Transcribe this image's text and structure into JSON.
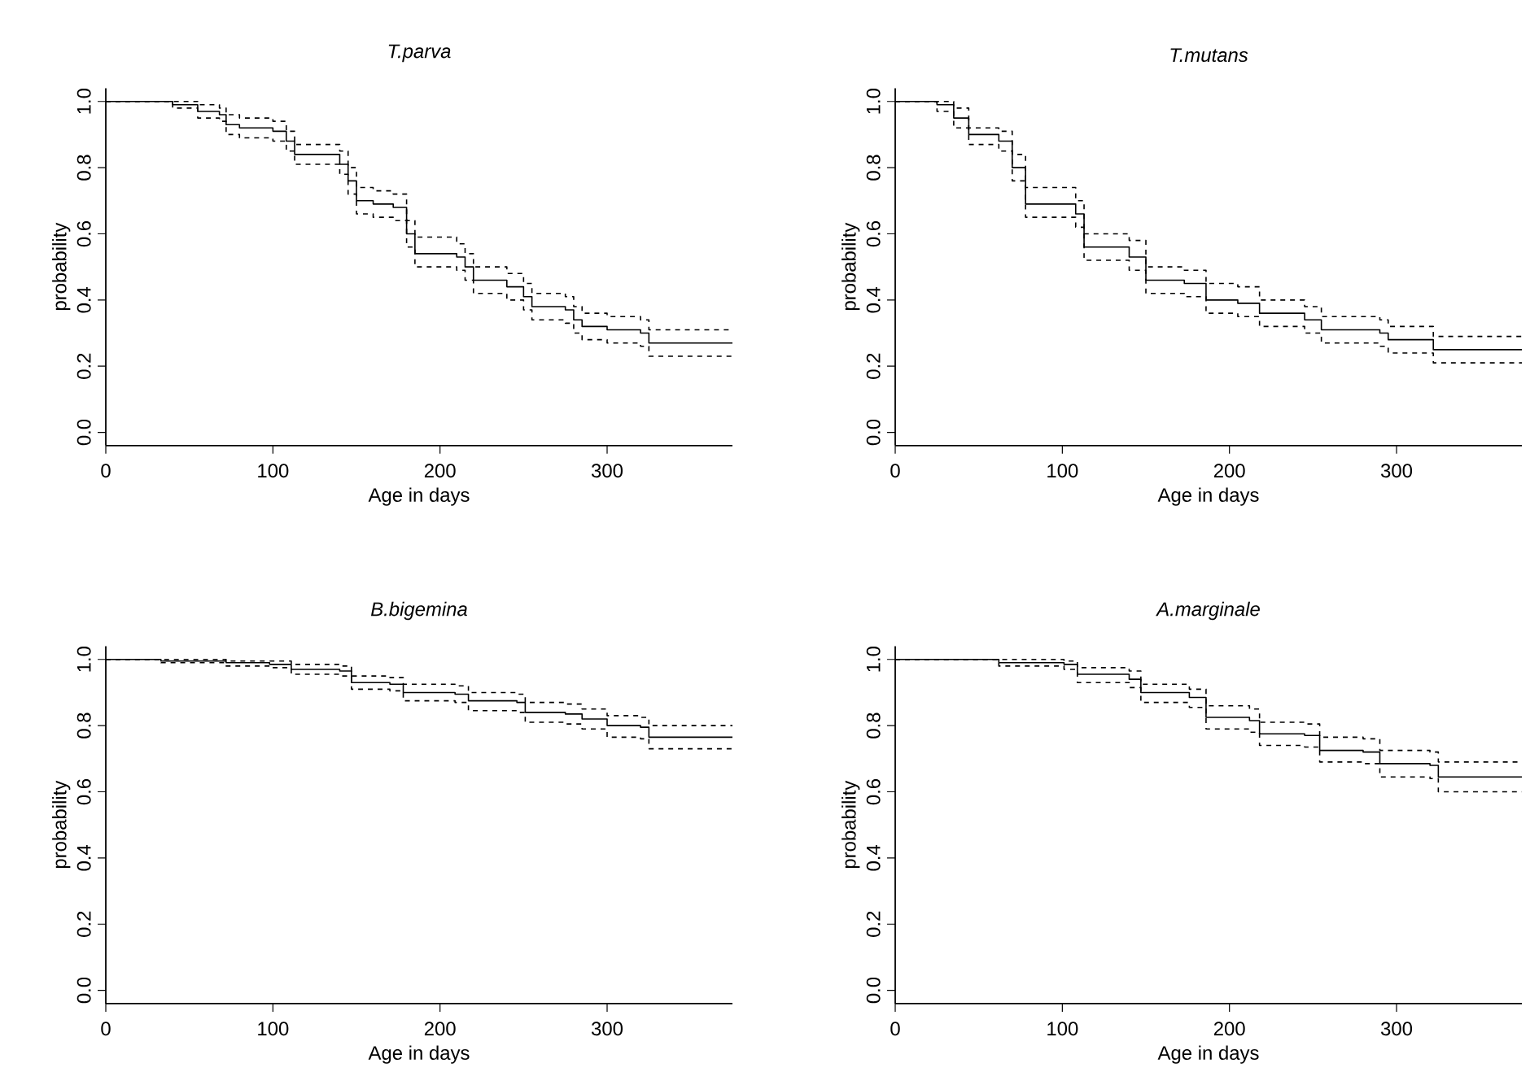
{
  "chart_data": [
    {
      "type": "step",
      "title": "T.parva",
      "xlabel": "Age in days",
      "ylabel": "probability",
      "xlim": [
        0,
        375
      ],
      "ylim": [
        -0.04,
        1.04
      ],
      "xticks": [
        0,
        100,
        200,
        300
      ],
      "yticks": [
        {
          "value": 0,
          "label": "0.0"
        },
        {
          "value": 0.2,
          "label": "0.2"
        },
        {
          "value": 0.4,
          "label": "0.4"
        },
        {
          "value": 0.6,
          "label": "0.6"
        },
        {
          "value": 0.8,
          "label": "0.8"
        },
        {
          "value": 1,
          "label": "1.0"
        }
      ],
      "x": [
        0,
        40,
        55,
        68,
        72,
        80,
        100,
        108,
        113,
        140,
        145,
        150,
        160,
        172,
        180,
        185,
        210,
        215,
        220,
        240,
        250,
        255,
        275,
        280,
        285,
        300,
        320,
        325,
        375
      ],
      "series": [
        {
          "color": "#000000",
          "line_style": "solid",
          "values": [
            1,
            0.99,
            0.97,
            0.96,
            0.93,
            0.92,
            0.91,
            0.88,
            0.84,
            0.81,
            0.76,
            0.7,
            0.69,
            0.68,
            0.6,
            0.54,
            0.53,
            0.5,
            0.46,
            0.44,
            0.41,
            0.38,
            0.37,
            0.34,
            0.32,
            0.31,
            0.3,
            0.27,
            0.27
          ]
        },
        {
          "color": "#000000",
          "line_style": "dashed",
          "values": [
            1,
            1.0,
            0.99,
            0.98,
            0.96,
            0.95,
            0.94,
            0.91,
            0.87,
            0.85,
            0.8,
            0.74,
            0.73,
            0.72,
            0.64,
            0.59,
            0.57,
            0.54,
            0.5,
            0.48,
            0.45,
            0.42,
            0.41,
            0.38,
            0.36,
            0.35,
            0.34,
            0.31,
            0.31
          ]
        },
        {
          "color": "#000000",
          "line_style": "dashed",
          "values": [
            1,
            0.98,
            0.95,
            0.94,
            0.9,
            0.89,
            0.88,
            0.85,
            0.81,
            0.78,
            0.72,
            0.66,
            0.65,
            0.64,
            0.56,
            0.5,
            0.49,
            0.46,
            0.42,
            0.4,
            0.37,
            0.34,
            0.33,
            0.3,
            0.28,
            0.27,
            0.26,
            0.23,
            0.23
          ]
        }
      ]
    },
    {
      "type": "step",
      "title": "T.mutans",
      "xlabel": "Age in days",
      "ylabel": "probability",
      "xlim": [
        0,
        375
      ],
      "ylim": [
        -0.04,
        1.04
      ],
      "xticks": [
        0,
        100,
        200,
        300
      ],
      "yticks": [
        {
          "value": 0,
          "label": "0.0"
        },
        {
          "value": 0.2,
          "label": "0.2"
        },
        {
          "value": 0.4,
          "label": "0.4"
        },
        {
          "value": 0.6,
          "label": "0.6"
        },
        {
          "value": 0.8,
          "label": "0.8"
        },
        {
          "value": 1,
          "label": "1.0"
        }
      ],
      "x": [
        0,
        25,
        35,
        44,
        62,
        70,
        78,
        108,
        113,
        140,
        150,
        173,
        186,
        205,
        218,
        245,
        255,
        290,
        295,
        318,
        322,
        375
      ],
      "series": [
        {
          "color": "#000000",
          "line_style": "solid",
          "values": [
            1,
            0.99,
            0.95,
            0.9,
            0.88,
            0.8,
            0.69,
            0.66,
            0.56,
            0.53,
            0.46,
            0.45,
            0.4,
            0.39,
            0.36,
            0.34,
            0.31,
            0.3,
            0.28,
            0.28,
            0.25,
            0.25
          ]
        },
        {
          "color": "#000000",
          "line_style": "dashed",
          "values": [
            1,
            1,
            0.98,
            0.92,
            0.91,
            0.84,
            0.74,
            0.7,
            0.6,
            0.58,
            0.5,
            0.49,
            0.45,
            0.44,
            0.4,
            0.38,
            0.35,
            0.34,
            0.32,
            0.32,
            0.29,
            0.29
          ]
        },
        {
          "color": "#000000",
          "line_style": "dashed",
          "values": [
            1,
            0.97,
            0.92,
            0.87,
            0.85,
            0.76,
            0.65,
            0.62,
            0.52,
            0.49,
            0.42,
            0.41,
            0.36,
            0.35,
            0.32,
            0.3,
            0.27,
            0.26,
            0.24,
            0.24,
            0.21,
            0.21
          ]
        }
      ]
    },
    {
      "type": "step",
      "title": "B.bigemina",
      "xlabel": "Age in days",
      "ylabel": "probability",
      "xlim": [
        0,
        375
      ],
      "ylim": [
        -0.04,
        1.04
      ],
      "xticks": [
        0,
        100,
        200,
        300
      ],
      "yticks": [
        {
          "value": 0,
          "label": "0.0"
        },
        {
          "value": 0.2,
          "label": "0.2"
        },
        {
          "value": 0.4,
          "label": "0.4"
        },
        {
          "value": 0.6,
          "label": "0.6"
        },
        {
          "value": 0.8,
          "label": "0.8"
        },
        {
          "value": 1,
          "label": "1.0"
        }
      ],
      "x": [
        0,
        33,
        72,
        98,
        111,
        140,
        147,
        170,
        178,
        209,
        217,
        246,
        251,
        275,
        285,
        300,
        320,
        325,
        375
      ],
      "series": [
        {
          "color": "#000000",
          "line_style": "solid",
          "values": [
            1,
            0.995,
            0.99,
            0.985,
            0.97,
            0.965,
            0.93,
            0.925,
            0.9,
            0.895,
            0.875,
            0.87,
            0.84,
            0.835,
            0.82,
            0.8,
            0.795,
            0.765,
            0.765
          ]
        },
        {
          "color": "#000000",
          "line_style": "dashed",
          "values": [
            1,
            1,
            0.995,
            0.995,
            0.985,
            0.98,
            0.95,
            0.945,
            0.925,
            0.92,
            0.9,
            0.895,
            0.87,
            0.865,
            0.85,
            0.83,
            0.825,
            0.8,
            0.8
          ]
        },
        {
          "color": "#000000",
          "line_style": "dashed",
          "values": [
            1,
            0.99,
            0.98,
            0.975,
            0.955,
            0.95,
            0.91,
            0.905,
            0.875,
            0.87,
            0.845,
            0.84,
            0.81,
            0.805,
            0.79,
            0.765,
            0.76,
            0.73,
            0.73
          ]
        }
      ]
    },
    {
      "type": "step",
      "title": "A.marginale",
      "xlabel": "Age in days",
      "ylabel": "probability",
      "xlim": [
        0,
        375
      ],
      "ylim": [
        -0.04,
        1.04
      ],
      "xticks": [
        0,
        100,
        200,
        300
      ],
      "yticks": [
        {
          "value": 0,
          "label": "0.0"
        },
        {
          "value": 0.2,
          "label": "0.2"
        },
        {
          "value": 0.4,
          "label": "0.4"
        },
        {
          "value": 0.6,
          "label": "0.6"
        },
        {
          "value": 0.8,
          "label": "0.8"
        },
        {
          "value": 1,
          "label": "1.0"
        }
      ],
      "x": [
        0,
        62,
        101,
        109,
        140,
        147,
        176,
        186,
        212,
        218,
        245,
        254,
        280,
        290,
        320,
        325,
        375
      ],
      "series": [
        {
          "color": "#000000",
          "line_style": "solid",
          "values": [
            1,
            0.99,
            0.985,
            0.955,
            0.94,
            0.9,
            0.885,
            0.825,
            0.815,
            0.775,
            0.77,
            0.725,
            0.72,
            0.685,
            0.68,
            0.645,
            0.645
          ]
        },
        {
          "color": "#000000",
          "line_style": "dashed",
          "values": [
            1,
            1,
            0.995,
            0.975,
            0.965,
            0.925,
            0.91,
            0.86,
            0.85,
            0.81,
            0.805,
            0.765,
            0.76,
            0.725,
            0.72,
            0.69,
            0.69
          ]
        },
        {
          "color": "#000000",
          "line_style": "dashed",
          "values": [
            1,
            0.98,
            0.97,
            0.93,
            0.915,
            0.87,
            0.855,
            0.79,
            0.78,
            0.74,
            0.735,
            0.69,
            0.685,
            0.645,
            0.64,
            0.6,
            0.6
          ]
        }
      ]
    }
  ]
}
